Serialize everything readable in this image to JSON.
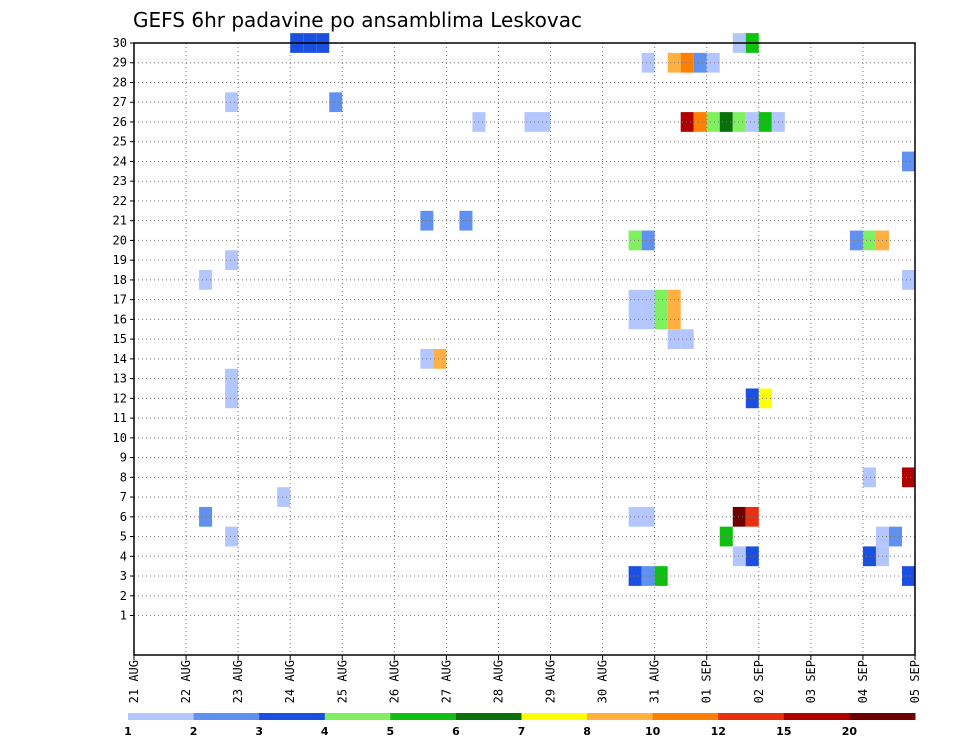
{
  "chart_data": {
    "type": "heatmap",
    "title": "GEFS 6hr padavine po ansamblima Leskovac",
    "xlabel": "",
    "ylabel": "",
    "x_tick_labels": [
      "21 AUG",
      "22 AUG",
      "23 AUG",
      "24 AUG",
      "25 AUG",
      "26 AUG",
      "27 AUG",
      "28 AUG",
      "29 AUG",
      "30 AUG",
      "31 AUG",
      "01 SEP",
      "02 SEP",
      "03 SEP",
      "04 SEP",
      "05 SEP"
    ],
    "y_tick_labels": [
      "1",
      "2",
      "3",
      "4",
      "5",
      "6",
      "7",
      "8",
      "9",
      "10",
      "11",
      "12",
      "13",
      "14",
      "15",
      "16",
      "17",
      "18",
      "19",
      "20",
      "21",
      "22",
      "23",
      "24",
      "25",
      "26",
      "27",
      "28",
      "29",
      "30"
    ],
    "xlim": [
      0,
      60
    ],
    "ylim": [
      0,
      30
    ],
    "grid": true,
    "colorbar": {
      "labels": [
        "1",
        "2",
        "3",
        "4",
        "5",
        "6",
        "7",
        "8",
        "10",
        "12",
        "15",
        "20"
      ],
      "colors": [
        "#b3c6ff",
        "#6090f0",
        "#1a4fe0",
        "#80f060",
        "#10c010",
        "#0a700a",
        "#ffff00",
        "#ffb040",
        "#ff8000",
        "#e83010",
        "#b00000",
        "#700000"
      ]
    },
    "cells": [
      {
        "member": 30,
        "step": 12,
        "bin": 2
      },
      {
        "member": 30,
        "step": 13,
        "bin": 2
      },
      {
        "member": 30,
        "step": 14,
        "bin": 2
      },
      {
        "member": 30,
        "step": 46,
        "bin": 0
      },
      {
        "member": 30,
        "step": 47,
        "bin": 4
      },
      {
        "member": 29,
        "step": 39,
        "bin": 0
      },
      {
        "member": 29,
        "step": 41,
        "bin": 7
      },
      {
        "member": 29,
        "step": 42,
        "bin": 8
      },
      {
        "member": 29,
        "step": 43,
        "bin": 1
      },
      {
        "member": 29,
        "step": 44,
        "bin": 0
      },
      {
        "member": 27,
        "step": 7,
        "bin": 0
      },
      {
        "member": 27,
        "step": 15,
        "bin": 1
      },
      {
        "member": 26,
        "step": 26,
        "bin": 0
      },
      {
        "member": 26,
        "step": 30,
        "bin": 0
      },
      {
        "member": 26,
        "step": 31,
        "bin": 0
      },
      {
        "member": 26,
        "step": 42,
        "bin": 10
      },
      {
        "member": 26,
        "step": 43,
        "bin": 8
      },
      {
        "member": 26,
        "step": 44,
        "bin": 3
      },
      {
        "member": 26,
        "step": 45,
        "bin": 5
      },
      {
        "member": 26,
        "step": 46,
        "bin": 3
      },
      {
        "member": 26,
        "step": 47,
        "bin": 0
      },
      {
        "member": 26,
        "step": 48,
        "bin": 4
      },
      {
        "member": 26,
        "step": 49,
        "bin": 0
      },
      {
        "member": 24,
        "step": 59,
        "bin": 1
      },
      {
        "member": 21,
        "step": 22,
        "bin": 1
      },
      {
        "member": 21,
        "step": 25,
        "bin": 1
      },
      {
        "member": 20,
        "step": 38,
        "bin": 3
      },
      {
        "member": 20,
        "step": 39,
        "bin": 1
      },
      {
        "member": 20,
        "step": 55,
        "bin": 1
      },
      {
        "member": 20,
        "step": 56,
        "bin": 3
      },
      {
        "member": 20,
        "step": 57,
        "bin": 7
      },
      {
        "member": 19,
        "step": 7,
        "bin": 0
      },
      {
        "member": 18,
        "step": 5,
        "bin": 0
      },
      {
        "member": 18,
        "step": 59,
        "bin": 0
      },
      {
        "member": 17,
        "step": 38,
        "bin": 0
      },
      {
        "member": 17,
        "step": 39,
        "bin": 0
      },
      {
        "member": 17,
        "step": 40,
        "bin": 3
      },
      {
        "member": 17,
        "step": 41,
        "bin": 7
      },
      {
        "member": 16,
        "step": 38,
        "bin": 0
      },
      {
        "member": 16,
        "step": 39,
        "bin": 0
      },
      {
        "member": 16,
        "step": 40,
        "bin": 3
      },
      {
        "member": 16,
        "step": 41,
        "bin": 7
      },
      {
        "member": 15,
        "step": 41,
        "bin": 0
      },
      {
        "member": 15,
        "step": 42,
        "bin": 0
      },
      {
        "member": 14,
        "step": 22,
        "bin": 0
      },
      {
        "member": 14,
        "step": 23,
        "bin": 7
      },
      {
        "member": 13,
        "step": 7,
        "bin": 0
      },
      {
        "member": 12,
        "step": 7,
        "bin": 0
      },
      {
        "member": 12,
        "step": 47,
        "bin": 2
      },
      {
        "member": 12,
        "step": 48,
        "bin": 6
      },
      {
        "member": 8,
        "step": 56,
        "bin": 0
      },
      {
        "member": 8,
        "step": 59,
        "bin": 10
      },
      {
        "member": 7,
        "step": 11,
        "bin": 0
      },
      {
        "member": 6,
        "step": 5,
        "bin": 1
      },
      {
        "member": 6,
        "step": 38,
        "bin": 0
      },
      {
        "member": 6,
        "step": 39,
        "bin": 0
      },
      {
        "member": 6,
        "step": 46,
        "bin": 11
      },
      {
        "member": 6,
        "step": 47,
        "bin": 9
      },
      {
        "member": 5,
        "step": 7,
        "bin": 0
      },
      {
        "member": 5,
        "step": 45,
        "bin": 4
      },
      {
        "member": 5,
        "step": 57,
        "bin": 0
      },
      {
        "member": 5,
        "step": 58,
        "bin": 1
      },
      {
        "member": 4,
        "step": 46,
        "bin": 0
      },
      {
        "member": 4,
        "step": 47,
        "bin": 2
      },
      {
        "member": 4,
        "step": 56,
        "bin": 2
      },
      {
        "member": 4,
        "step": 57,
        "bin": 0
      },
      {
        "member": 3,
        "step": 38,
        "bin": 2
      },
      {
        "member": 3,
        "step": 39,
        "bin": 1
      },
      {
        "member": 3,
        "step": 40,
        "bin": 4
      },
      {
        "member": 3,
        "step": 59,
        "bin": 2
      }
    ]
  }
}
